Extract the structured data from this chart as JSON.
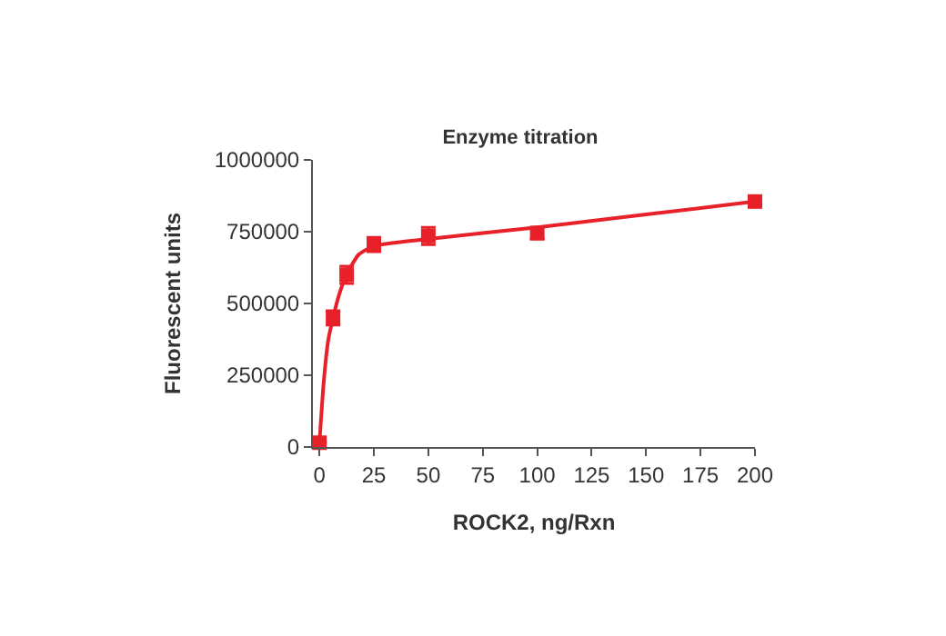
{
  "chart_data": {
    "type": "scatter",
    "title": "Enzyme titration",
    "xlabel": "ROCK2, ng/Rxn",
    "ylabel": "Fluorescent units",
    "xlim": [
      -3,
      200
    ],
    "xticks": [
      0,
      25,
      50,
      75,
      100,
      125,
      150,
      175,
      200
    ],
    "ylim": [
      0,
      1000000
    ],
    "yticks": [
      0,
      250000,
      500000,
      750000,
      1000000
    ],
    "marker": "square",
    "series": [
      {
        "type": "line",
        "color": "#e8202a",
        "marker": "none",
        "line_style": "solid",
        "x": [
          0,
          2,
          4,
          6.25,
          9,
          12.5,
          18,
          25,
          35,
          50,
          75,
          100,
          150,
          200
        ],
        "values": [
          15000,
          230000,
          370000,
          450000,
          530000,
          600000,
          670000,
          700000,
          712000,
          725000,
          745000,
          765000,
          810000,
          855000
        ]
      },
      {
        "color": "#e8202a",
        "x": [
          0,
          6.25,
          12.5,
          25,
          50,
          100,
          200
        ],
        "values": [
          15000,
          450000,
          600000,
          705000,
          735000,
          745000,
          855000
        ],
        "errors": [
          null,
          25000,
          30000,
          25000,
          30000,
          20000,
          null
        ]
      }
    ]
  }
}
